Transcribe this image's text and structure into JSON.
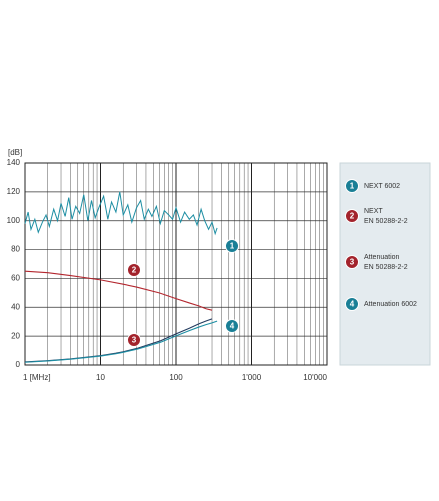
{
  "chart_data": {
    "type": "line",
    "log_x": true,
    "y_axis_label": "[dB]",
    "xlim": [
      1,
      10000
    ],
    "xticks": [
      {
        "value": 1,
        "label": "1 [MHz]"
      },
      10,
      100,
      {
        "value": 1000,
        "label": "1'000"
      },
      {
        "value": 10000,
        "label": "10'000"
      }
    ],
    "minor_xticks": [
      2,
      3,
      4,
      5,
      6,
      7,
      8,
      9,
      20,
      30,
      40,
      50,
      60,
      70,
      80,
      90,
      200,
      300,
      400,
      500,
      600,
      700,
      800,
      900,
      2000,
      3000,
      4000,
      5000,
      6000,
      7000,
      8000,
      9000
    ],
    "ylim": [
      0,
      140
    ],
    "yticks": [
      0,
      20,
      40,
      60,
      80,
      100,
      120,
      140
    ],
    "grid": true,
    "series": [
      {
        "name": "NEXT 6002",
        "badge": "1",
        "color": "#1d8ea3",
        "badge_color": "#1a7f96",
        "x": [
          1,
          1.1,
          1.2,
          1.35,
          1.5,
          1.7,
          1.9,
          2.1,
          2.4,
          2.7,
          3,
          3.4,
          3.8,
          4.2,
          4.7,
          5.3,
          6,
          6.8,
          7.6,
          8.5,
          9.5,
          11,
          12.5,
          14,
          16,
          18,
          20,
          23,
          26,
          30,
          34,
          38,
          43,
          48,
          55,
          62,
          70,
          80,
          90,
          100,
          115,
          130,
          150,
          170,
          190,
          215,
          240,
          270,
          300,
          330,
          350
        ],
        "values": [
          98,
          106,
          94,
          101,
          92,
          99,
          104,
          96,
          108,
          100,
          112,
          103,
          116,
          101,
          110,
          105,
          118,
          100,
          114,
          102,
          109,
          117,
          101,
          113,
          106,
          120,
          104,
          111,
          99,
          109,
          114,
          101,
          108,
          103,
          110,
          98,
          107,
          104,
          101,
          109,
          99,
          106,
          101,
          104,
          97,
          108,
          100,
          94,
          99,
          91,
          95
        ]
      },
      {
        "name": "NEXT\nEN 50288-2-2",
        "badge": "2",
        "color": "#b3262e",
        "badge_color": "#a3232c",
        "x": [
          1,
          2,
          4,
          10,
          20,
          30,
          60,
          100,
          150,
          200,
          250,
          300
        ],
        "values": [
          65,
          64,
          62,
          59,
          56,
          54,
          50,
          46,
          43,
          41,
          39,
          38
        ]
      },
      {
        "name": "Attenuation\nEN 50288-2-2",
        "badge": "3",
        "color": "#223a5e",
        "badge_color": "#a3232c",
        "x": [
          1,
          2,
          4,
          10,
          16,
          20,
          31.25,
          62.5,
          100,
          150,
          200,
          250,
          300
        ],
        "values": [
          2.1,
          3,
          4.2,
          6.5,
          8.2,
          9.2,
          11.7,
          16.8,
          21.6,
          25.5,
          28.5,
          30.5,
          32
        ]
      },
      {
        "name": "Attenuation 6002",
        "badge": "4",
        "color": "#1d8ea3",
        "badge_color": "#1a7f96",
        "x": [
          1,
          2,
          4,
          10,
          16,
          20,
          31.25,
          62.5,
          100,
          150,
          200,
          250,
          300,
          350
        ],
        "values": [
          1.9,
          2.8,
          4,
          6.2,
          7.8,
          8.8,
          11.1,
          15.8,
          20.2,
          23.8,
          26.3,
          28,
          29.2,
          30.4
        ]
      }
    ]
  }
}
